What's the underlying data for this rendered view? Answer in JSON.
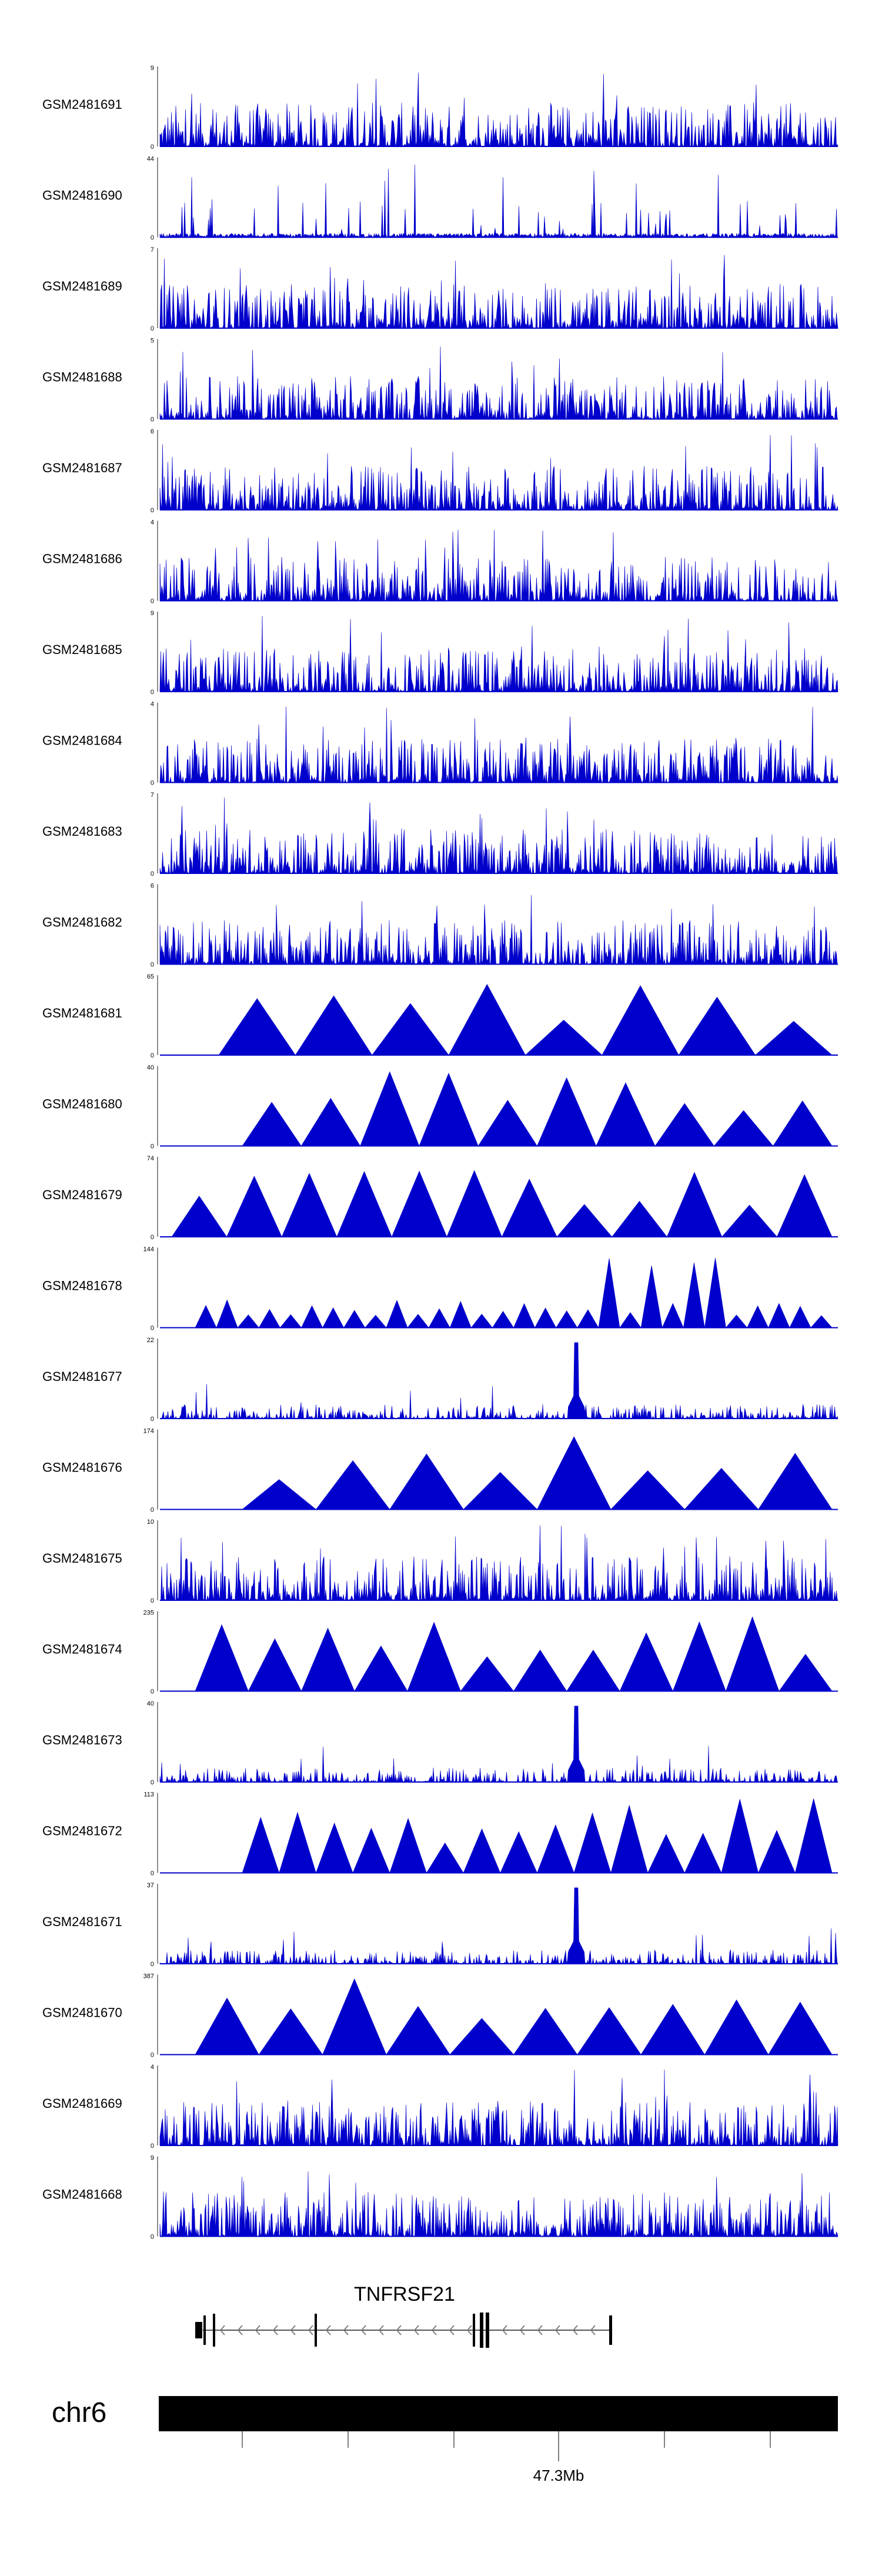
{
  "chart_data": {
    "type": "area",
    "title": "",
    "xlabel": "",
    "ylabel": "",
    "color": "#0000cc",
    "style_by_index": [
      "noisy",
      "sparse",
      "noisy",
      "noisy",
      "noisy",
      "noisy",
      "noisy",
      "noisy",
      "noisy",
      "noisy",
      "triangles",
      "triangles",
      "triangles",
      "small-triangles",
      "peak",
      "triangles",
      "noisy",
      "triangles",
      "peak",
      "triangles",
      "peak",
      "triangles",
      "noisy",
      "noisy"
    ],
    "tracks": [
      {
        "name": "GSM2481691",
        "ymax": "9",
        "ymin": "0"
      },
      {
        "name": "GSM2481690",
        "ymax": "44",
        "ymin": "0"
      },
      {
        "name": "GSM2481689",
        "ymax": "7",
        "ymin": "0"
      },
      {
        "name": "GSM2481688",
        "ymax": "5",
        "ymin": "0"
      },
      {
        "name": "GSM2481687",
        "ymax": "6",
        "ymin": "0"
      },
      {
        "name": "GSM2481686",
        "ymax": "4",
        "ymin": "0"
      },
      {
        "name": "GSM2481685",
        "ymax": "9",
        "ymin": "0"
      },
      {
        "name": "GSM2481684",
        "ymax": "4",
        "ymin": "0"
      },
      {
        "name": "GSM2481683",
        "ymax": "7",
        "ymin": "0"
      },
      {
        "name": "GSM2481682",
        "ymax": "6",
        "ymin": "0"
      },
      {
        "name": "GSM2481681",
        "ymax": "65",
        "ymin": "0"
      },
      {
        "name": "GSM2481680",
        "ymax": "40",
        "ymin": "0"
      },
      {
        "name": "GSM2481679",
        "ymax": "74",
        "ymin": "0"
      },
      {
        "name": "GSM2481678",
        "ymax": "144",
        "ymin": "0"
      },
      {
        "name": "GSM2481677",
        "ymax": "22",
        "ymin": "0"
      },
      {
        "name": "GSM2481676",
        "ymax": "174",
        "ymin": "0"
      },
      {
        "name": "GSM2481675",
        "ymax": "10",
        "ymin": "0"
      },
      {
        "name": "GSM2481674",
        "ymax": "235",
        "ymin": "0"
      },
      {
        "name": "GSM2481673",
        "ymax": "40",
        "ymin": "0"
      },
      {
        "name": "GSM2481672",
        "ymax": "113",
        "ymin": "0"
      },
      {
        "name": "GSM2481671",
        "ymax": "37",
        "ymin": "0"
      },
      {
        "name": "GSM2481670",
        "ymax": "387",
        "ymin": "0"
      },
      {
        "name": "GSM2481669",
        "ymax": "4",
        "ymin": "0"
      },
      {
        "name": "GSM2481668",
        "ymax": "9",
        "ymin": "0"
      }
    ],
    "gene": {
      "name": "TNFRSF21",
      "strand": "-"
    },
    "chromosome": {
      "name": "chr6",
      "tick_label": "47.3Mb"
    }
  }
}
